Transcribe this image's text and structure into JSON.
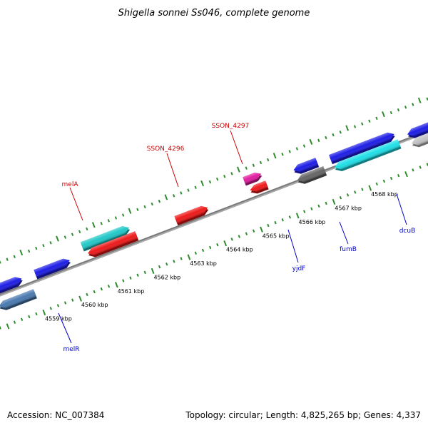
{
  "title": "Shigella sonnei Ss046, complete genome",
  "footer": {
    "accession": "Accession: NC_007384",
    "summary": "Topology: circular; Length: 4,825,265 bp; Genes: 4,337"
  },
  "colors": {
    "backbone": "#7a7a7a",
    "tick": "#2e8b2e",
    "top_label": "#cc0000",
    "bottom_label": "#0000cc"
  },
  "ticks": {
    "labels": [
      "4559 kbp",
      "4560 kbp",
      "4561 kbp",
      "4562 kbp",
      "4563 kbp",
      "4564 kbp",
      "4565 kbp",
      "4566 kbp",
      "4567 kbp",
      "4568 kbp"
    ]
  },
  "gene_labels": {
    "top": [
      "melA",
      "SSON_4296",
      "SSON_4297"
    ],
    "bottom": [
      "melR",
      "yjdF",
      "fumB",
      "dcuB"
    ]
  },
  "features": [
    {
      "color": "#1e1ee6",
      "strand": "forward"
    },
    {
      "color": "#1e1ee6",
      "strand": "forward"
    },
    {
      "color": "#4a7ab0",
      "strand": "reverse"
    },
    {
      "color": "#22c8c8",
      "strand": "forward"
    },
    {
      "color": "#ee1a1a",
      "strand": "reverse"
    },
    {
      "color": "#ee1a1a",
      "strand": "forward"
    },
    {
      "color": "#e020a0",
      "strand": "forward"
    },
    {
      "color": "#ee1a1a",
      "strand": "reverse"
    },
    {
      "color": "#1e1ee6",
      "strand": "reverse"
    },
    {
      "color": "#666666",
      "strand": "reverse"
    },
    {
      "color": "#1e1ee6",
      "strand": "forward"
    },
    {
      "color": "#20e0e8",
      "strand": "reverse"
    },
    {
      "color": "#1e1ee6",
      "strand": "reverse"
    },
    {
      "color": "#c4c4c4",
      "strand": "reverse"
    }
  ]
}
